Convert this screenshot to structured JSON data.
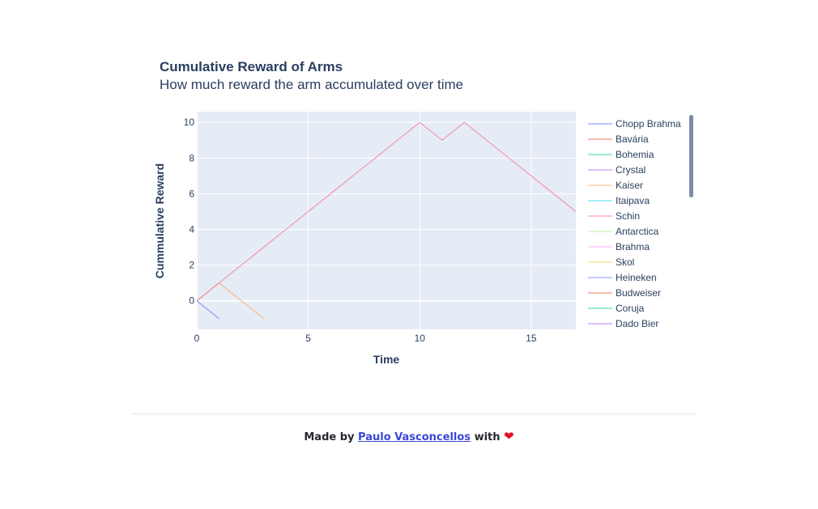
{
  "footer": {
    "prefix": "Made by",
    "author": "Paulo Vasconcellos",
    "suffix": "with",
    "heart": "❤"
  },
  "chart_data": {
    "type": "line",
    "title": "Cumulative Reward of Arms",
    "subtitle": "How much reward the arm accumulated over time",
    "xlabel": "Time",
    "ylabel": "Cummulative Reward",
    "xlim": [
      0,
      17
    ],
    "ylim": [
      -1.6,
      10.6
    ],
    "xticks": [
      0,
      5,
      10,
      15
    ],
    "yticks": [
      0,
      2,
      4,
      6,
      8,
      10
    ],
    "grid": true,
    "legend_position": "right",
    "legend_scrollable": true,
    "series": [
      {
        "name": "Chopp Brahma",
        "color": "#636efa",
        "x": [
          0,
          1
        ],
        "y": [
          0,
          -1
        ]
      },
      {
        "name": "Bavária",
        "color": "#ef553b",
        "x": [
          0
        ],
        "y": [
          0
        ]
      },
      {
        "name": "Bohemia",
        "color": "#00cc96",
        "x": [
          0
        ],
        "y": [
          0
        ]
      },
      {
        "name": "Crystal",
        "color": "#ab63fa",
        "x": [
          0
        ],
        "y": [
          0
        ]
      },
      {
        "name": "Kaiser",
        "color": "#ffa15a",
        "x": [
          0,
          1,
          2,
          3
        ],
        "y": [
          0,
          1,
          0,
          -1
        ]
      },
      {
        "name": "Itaipava",
        "color": "#19d3f3",
        "x": [
          0
        ],
        "y": [
          0
        ]
      },
      {
        "name": "Schin",
        "color": "#ff6692",
        "x": [
          0,
          1,
          2,
          3,
          4,
          5,
          6,
          7,
          8,
          9,
          10,
          11,
          12,
          13,
          14,
          15,
          16,
          17
        ],
        "y": [
          0,
          1,
          2,
          3,
          4,
          5,
          6,
          7,
          8,
          9,
          10,
          9,
          10,
          9,
          8,
          7,
          6,
          5
        ]
      },
      {
        "name": "Antarctica",
        "color": "#b6e880",
        "x": [
          0
        ],
        "y": [
          0
        ]
      },
      {
        "name": "Brahma",
        "color": "#ff97ff",
        "x": [
          0
        ],
        "y": [
          0
        ]
      },
      {
        "name": "Skol",
        "color": "#fecb52",
        "x": [
          0
        ],
        "y": [
          0
        ]
      },
      {
        "name": "Heineken",
        "color": "#636efa",
        "x": [
          0
        ],
        "y": [
          0
        ]
      },
      {
        "name": "Budweiser",
        "color": "#ef553b",
        "x": [
          0
        ],
        "y": [
          0
        ]
      },
      {
        "name": "Coruja",
        "color": "#00cc96",
        "x": [
          0
        ],
        "y": [
          0
        ]
      },
      {
        "name": "Dado Bier",
        "color": "#ab63fa",
        "x": [
          0
        ],
        "y": [
          0
        ]
      }
    ]
  }
}
